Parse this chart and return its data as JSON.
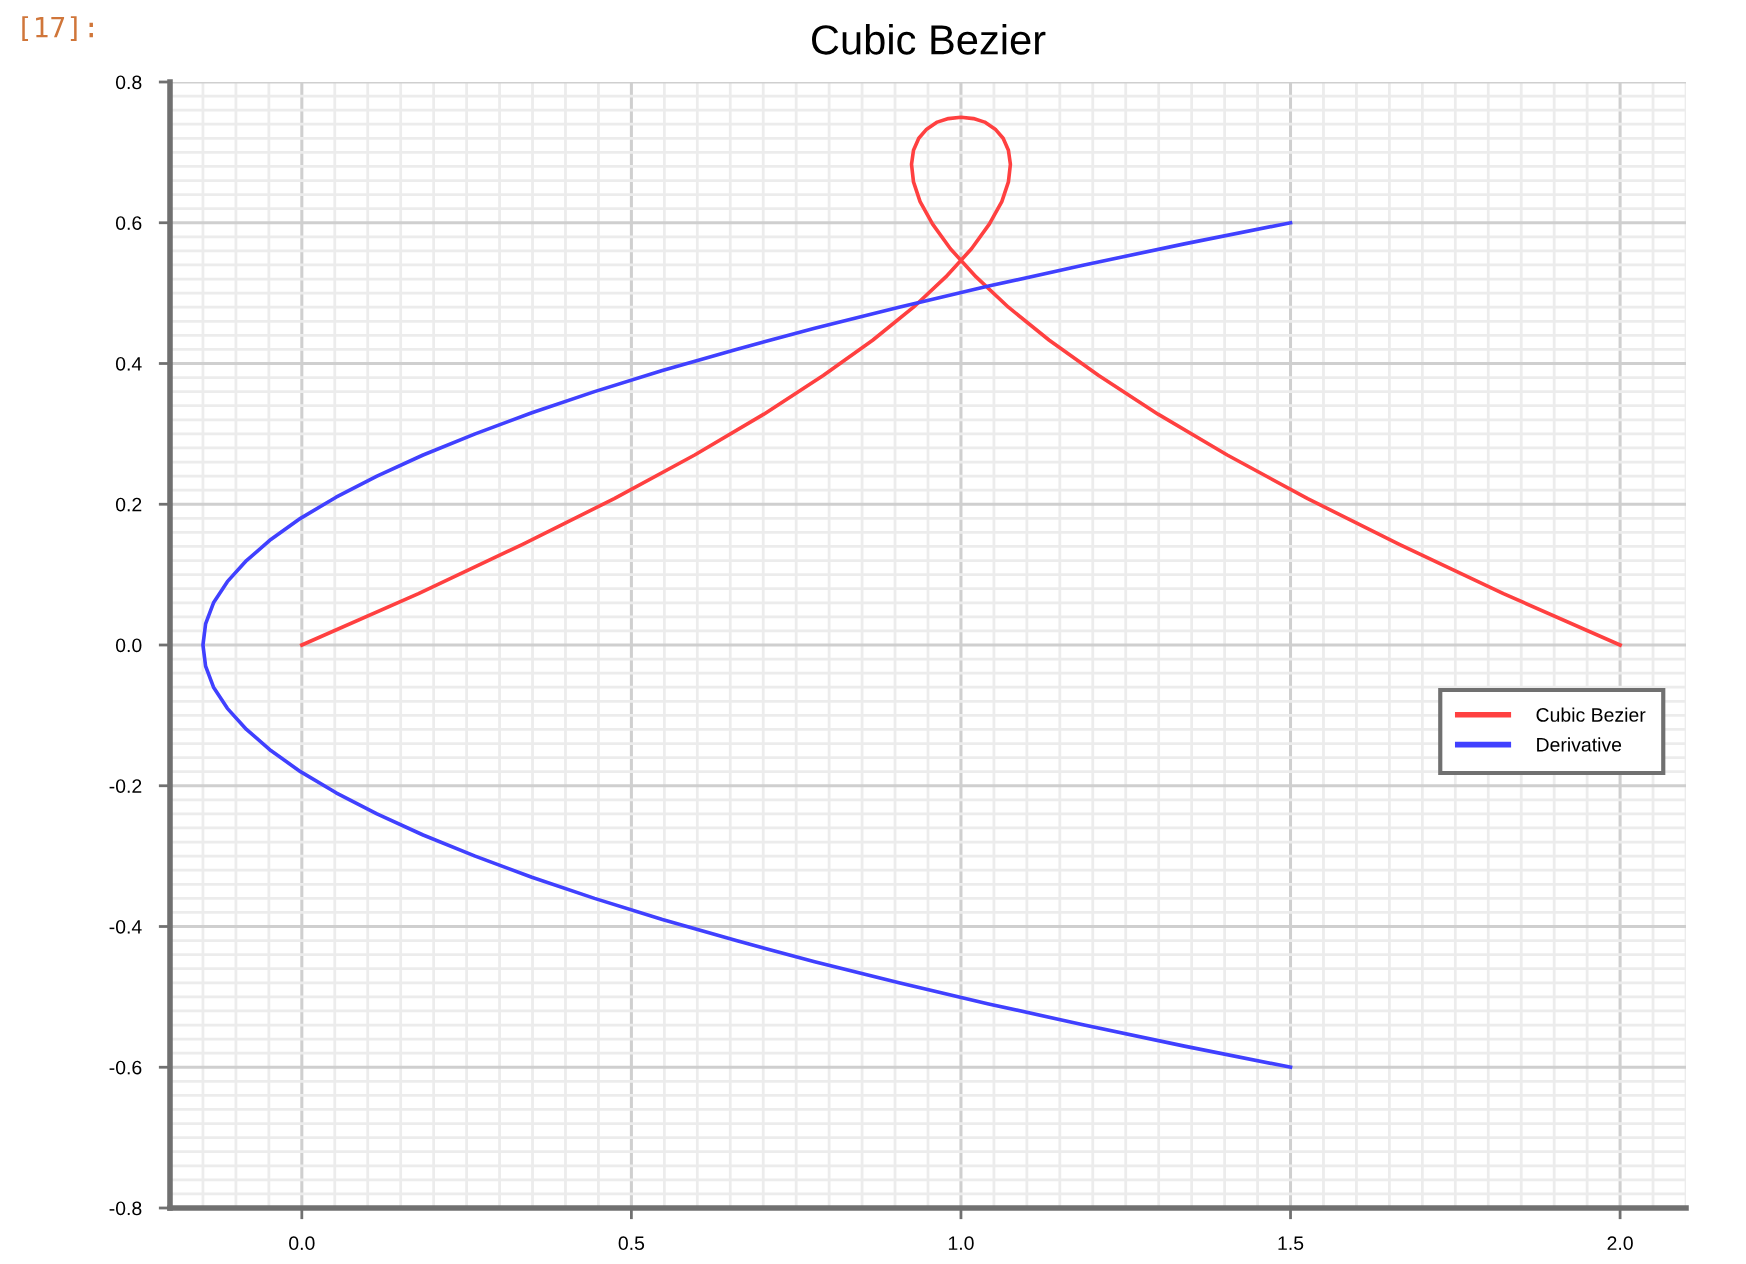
{
  "chart_data": {
    "type": "line",
    "title": "Cubic Bezier",
    "annotations": [
      "[17]:"
    ],
    "series": [
      {
        "name": "Cubic Bezier",
        "color": "#ff4040",
        "x": [
          0,
          0.177,
          0.335,
          0.474,
          0.596,
          0.701,
          0.791,
          0.866,
          0.928,
          0.977,
          1.016,
          1.043,
          1.062,
          1.072,
          1.075,
          1.072,
          1.064,
          1.052,
          1.036,
          1.019,
          1.0,
          0.981,
          0.964,
          0.948,
          0.936,
          0.928,
          0.925,
          0.928,
          0.938,
          0.957,
          0.984,
          1.023,
          1.072,
          1.134,
          1.209,
          1.299,
          1.404,
          1.526,
          1.665,
          1.823,
          2.0
        ],
        "values": [
          0,
          0.073,
          0.143,
          0.208,
          0.27,
          0.328,
          0.383,
          0.433,
          0.48,
          0.523,
          0.563,
          0.598,
          0.63,
          0.658,
          0.683,
          0.703,
          0.72,
          0.733,
          0.743,
          0.748,
          0.75,
          0.748,
          0.743,
          0.733,
          0.72,
          0.703,
          0.683,
          0.658,
          0.63,
          0.598,
          0.563,
          0.523,
          0.48,
          0.433,
          0.383,
          0.328,
          0.27,
          0.208,
          0.143,
          0.073,
          0
        ]
      },
      {
        "name": "Derivative",
        "color": "#4040ff",
        "x": [
          1.5,
          1.339,
          1.187,
          1.042,
          0.906,
          0.778,
          0.659,
          0.547,
          0.444,
          0.349,
          0.263,
          0.184,
          0.114,
          0.052,
          -0.002,
          -0.047,
          -0.084,
          -0.113,
          -0.134,
          -0.146,
          -0.15,
          -0.146,
          -0.134,
          -0.113,
          -0.084,
          -0.047,
          -0.002,
          0.052,
          0.114,
          0.184,
          0.263,
          0.349,
          0.444,
          0.547,
          0.659,
          0.778,
          0.906,
          1.042,
          1.187,
          1.339,
          1.5
        ],
        "values": [
          0.6,
          0.57,
          0.54,
          0.51,
          0.48,
          0.45,
          0.42,
          0.39,
          0.36,
          0.33,
          0.3,
          0.27,
          0.24,
          0.21,
          0.18,
          0.15,
          0.12,
          0.09,
          0.06,
          0.03,
          0,
          -0.03,
          -0.06,
          -0.09,
          -0.12,
          -0.15,
          -0.18,
          -0.21,
          -0.24,
          -0.27,
          -0.3,
          -0.33,
          -0.36,
          -0.39,
          -0.42,
          -0.45,
          -0.48,
          -0.51,
          -0.54,
          -0.57,
          -0.6
        ]
      }
    ],
    "xlim": [
      -0.2,
      2.1
    ],
    "xticks": [
      {
        "value": 0,
        "label": "0.0"
      },
      0.5,
      {
        "value": 1,
        "label": "1.0"
      },
      1.5,
      {
        "value": 2,
        "label": "2.0"
      }
    ],
    "ylim": [
      -0.8,
      0.8
    ],
    "yticks": [
      -0.8,
      -0.6,
      -0.4,
      -0.2,
      {
        "value": 0,
        "label": "0.0"
      },
      0.2,
      0.4,
      0.6,
      0.8
    ],
    "grid": true,
    "legend": "right",
    "line_style": "solid"
  }
}
